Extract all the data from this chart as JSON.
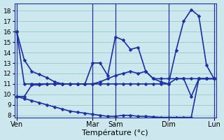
{
  "xlabel": "Température (°c)",
  "background_color": "#cce8ee",
  "grid_color": "#99cccc",
  "line_color": "#1a2eaa",
  "vline_color": "#2233aa",
  "ylim": [
    7.8,
    18.7
  ],
  "yticks": [
    8,
    9,
    10,
    11,
    12,
    13,
    14,
    15,
    16,
    17,
    18
  ],
  "xlim": [
    -0.3,
    26.3
  ],
  "day_positions": [
    0,
    10,
    13,
    20,
    26
  ],
  "day_labels": [
    "Ven",
    "Mar",
    "Sam",
    "Dim",
    "Lun"
  ],
  "line1": [
    16.0,
    13.3,
    12.2,
    11.9,
    11.6,
    11.2,
    11.0,
    11.0,
    11.0,
    11.0,
    13.0,
    13.0,
    11.8,
    15.5,
    15.2,
    14.3,
    14.5,
    12.2,
    11.5,
    11.2,
    11.0,
    14.2,
    17.0,
    18.1,
    17.5,
    12.8,
    11.5
  ],
  "line2": [
    16.0,
    11.0,
    11.0,
    11.0,
    11.0,
    11.0,
    11.0,
    11.0,
    11.0,
    11.0,
    11.0,
    11.0,
    11.0,
    11.0,
    11.0,
    11.0,
    11.0,
    11.0,
    11.0,
    11.0,
    11.0,
    11.5,
    11.5,
    11.5,
    11.5,
    11.5,
    11.5
  ],
  "line3": [
    9.8,
    9.8,
    10.9,
    10.9,
    11.0,
    11.0,
    11.0,
    11.0,
    11.0,
    11.0,
    11.0,
    11.2,
    11.5,
    11.8,
    12.0,
    12.2,
    12.0,
    12.2,
    11.5,
    11.5,
    11.5,
    11.5,
    11.5,
    9.8,
    11.5,
    11.5,
    11.5
  ],
  "line4": [
    9.8,
    9.6,
    9.4,
    9.2,
    9.0,
    8.8,
    8.6,
    8.4,
    8.3,
    8.2,
    8.1,
    8.0,
    7.9,
    7.9,
    8.0,
    8.0,
    7.9,
    7.9,
    7.85,
    7.8,
    7.8,
    7.8,
    7.8,
    7.8,
    11.5,
    11.5,
    11.5
  ],
  "marker": "D",
  "marker_size": 2.5,
  "linewidth": 1.2,
  "ytick_fontsize": 6.5,
  "xtick_fontsize": 7,
  "xlabel_fontsize": 8
}
